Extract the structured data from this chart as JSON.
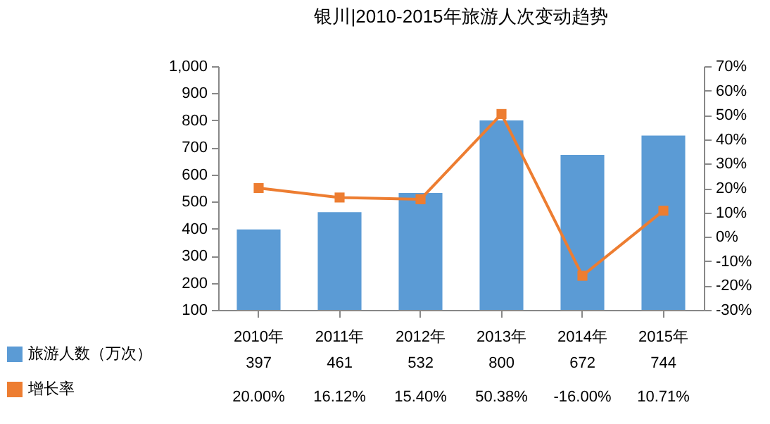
{
  "chart_data": {
    "type": "bar",
    "title": "银川|2010-2015年旅游人次变动趋势",
    "categories": [
      "2010年",
      "2011年",
      "2012年",
      "2013年",
      "2014年",
      "2015年"
    ],
    "series": [
      {
        "name": "旅游人数（万次）",
        "color": "#5b9bd5",
        "values": [
          397,
          461,
          532,
          800,
          672,
          744
        ],
        "value_labels": [
          "397",
          "461",
          "532",
          "800",
          "672",
          "744"
        ]
      },
      {
        "name": "增长率",
        "type": "line",
        "axis": "y2",
        "color": "#ed7d31",
        "values": [
          20,
          16.12,
          15.4,
          50.38,
          -16,
          10.71
        ],
        "value_labels": [
          "20.00%",
          "16.12%",
          "15.40%",
          "50.38%",
          "-16.00%",
          "10.71%"
        ]
      }
    ],
    "ylim": [
      100,
      1000
    ],
    "yticks": [
      100,
      200,
      300,
      400,
      500,
      600,
      700,
      800,
      900,
      {
        "value": 1000,
        "label": "1,000"
      }
    ],
    "y2lim": [
      -30,
      70
    ],
    "y2ticks": [
      {
        "value": -30,
        "label": "-30%"
      },
      {
        "value": -20,
        "label": "-20%"
      },
      {
        "value": -10,
        "label": "-10%"
      },
      {
        "value": 0,
        "label": "0%"
      },
      {
        "value": 10,
        "label": "10%"
      },
      {
        "value": 20,
        "label": "20%"
      },
      {
        "value": 30,
        "label": "30%"
      },
      {
        "value": 40,
        "label": "40%"
      },
      {
        "value": 50,
        "label": "50%"
      },
      {
        "value": 60,
        "label": "60%"
      },
      {
        "value": 70,
        "label": "70%"
      }
    ],
    "legend": "bottom left",
    "marker": "square",
    "grid": false
  }
}
